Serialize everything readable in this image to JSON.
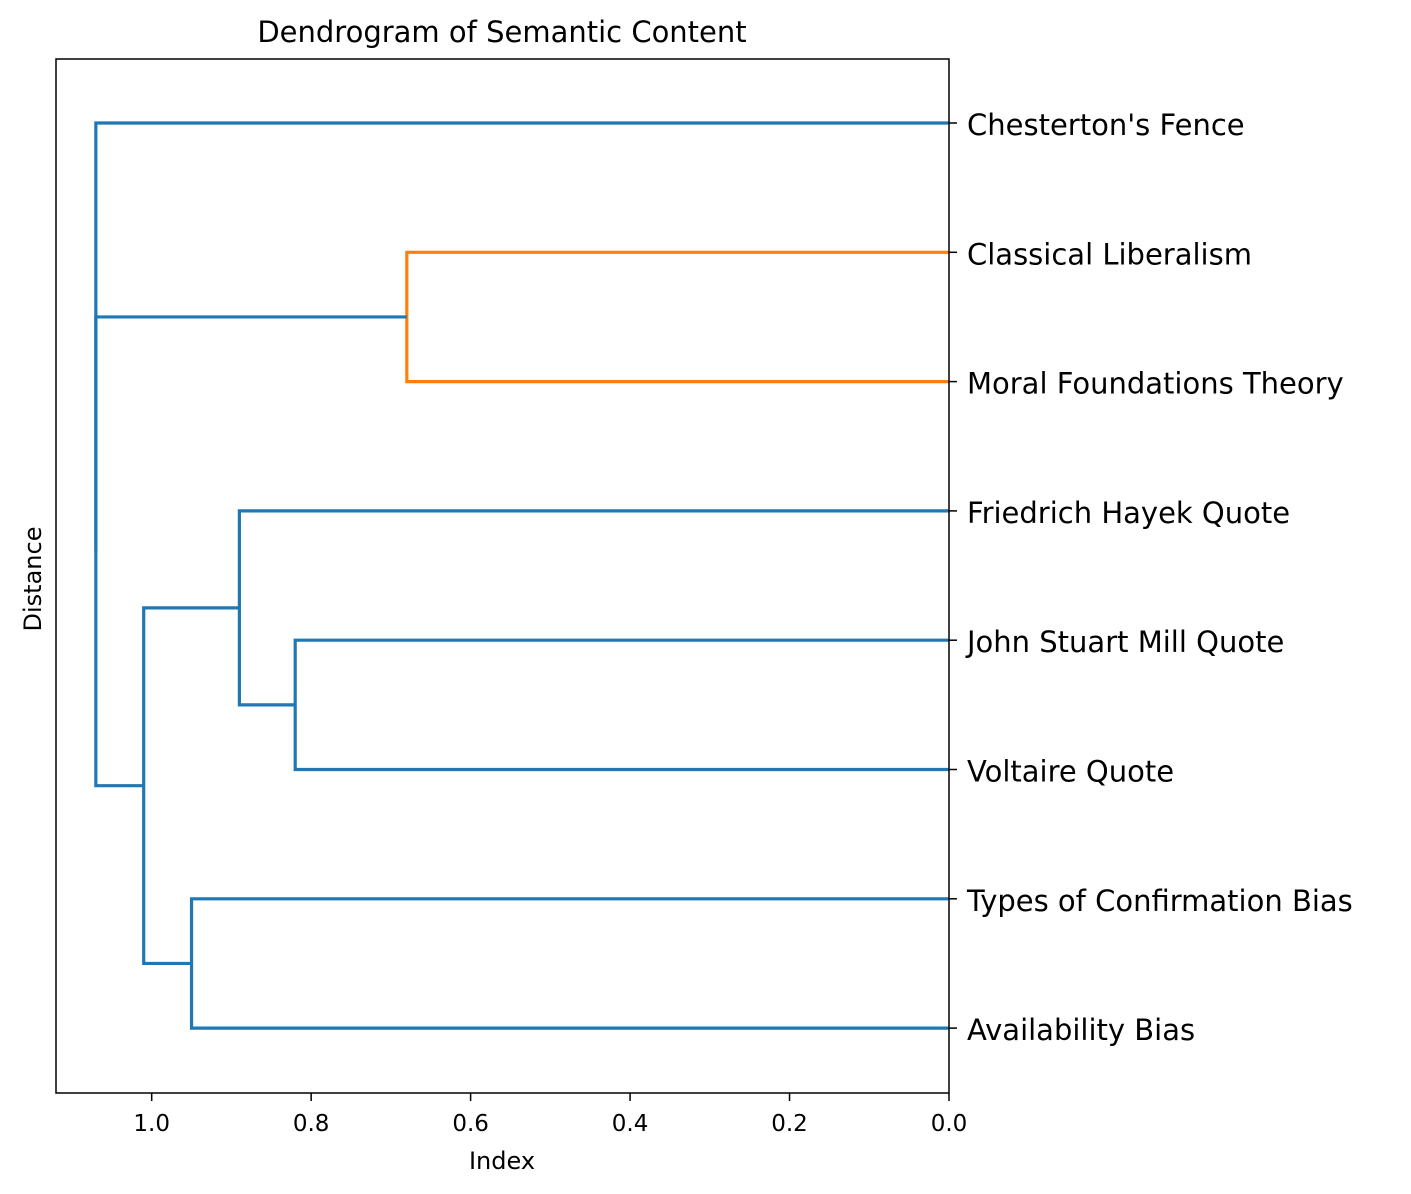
{
  "chart_data": {
    "type": "dendrogram",
    "orientation": "left",
    "title": "Dendrogram of Semantic Content",
    "xlabel": "Index",
    "ylabel": "Distance",
    "xlim": [
      1.12,
      0.0
    ],
    "xticks": [
      1.0,
      0.8,
      0.6,
      0.4,
      0.2,
      0.0
    ],
    "xtick_labels": [
      "1.0",
      "0.8",
      "0.6",
      "0.4",
      "0.2",
      "0.0"
    ],
    "leaves": [
      "Chesterton's Fence",
      "Classical Liberalism",
      "Moral Foundations Theory",
      "Friedrich Hayek Quote",
      "John Stuart Mill Quote",
      "Voltaire Quote",
      "Types of Confirmation Bias",
      "Availability Bias"
    ],
    "colors": {
      "cluster": "#ff7f0e",
      "above_threshold": "#1f77b4"
    },
    "links": [
      {
        "a": 1,
        "b": 2,
        "height": 0.68,
        "color": "cluster"
      },
      {
        "a": 4,
        "b": 5,
        "height": 0.82,
        "color": "above_threshold"
      },
      {
        "a": 3,
        "b": "link1",
        "height": 0.89,
        "color": "above_threshold"
      },
      {
        "a": 6,
        "b": 7,
        "height": 0.95,
        "color": "above_threshold"
      },
      {
        "a": "link2",
        "b": "link3",
        "height": 1.01,
        "color": "above_threshold"
      },
      {
        "a": "link0",
        "b": "link4",
        "height": 1.07,
        "color": "above_threshold"
      },
      {
        "a": 0,
        "b": "link5",
        "height": 1.07,
        "color": "above_threshold"
      }
    ]
  }
}
